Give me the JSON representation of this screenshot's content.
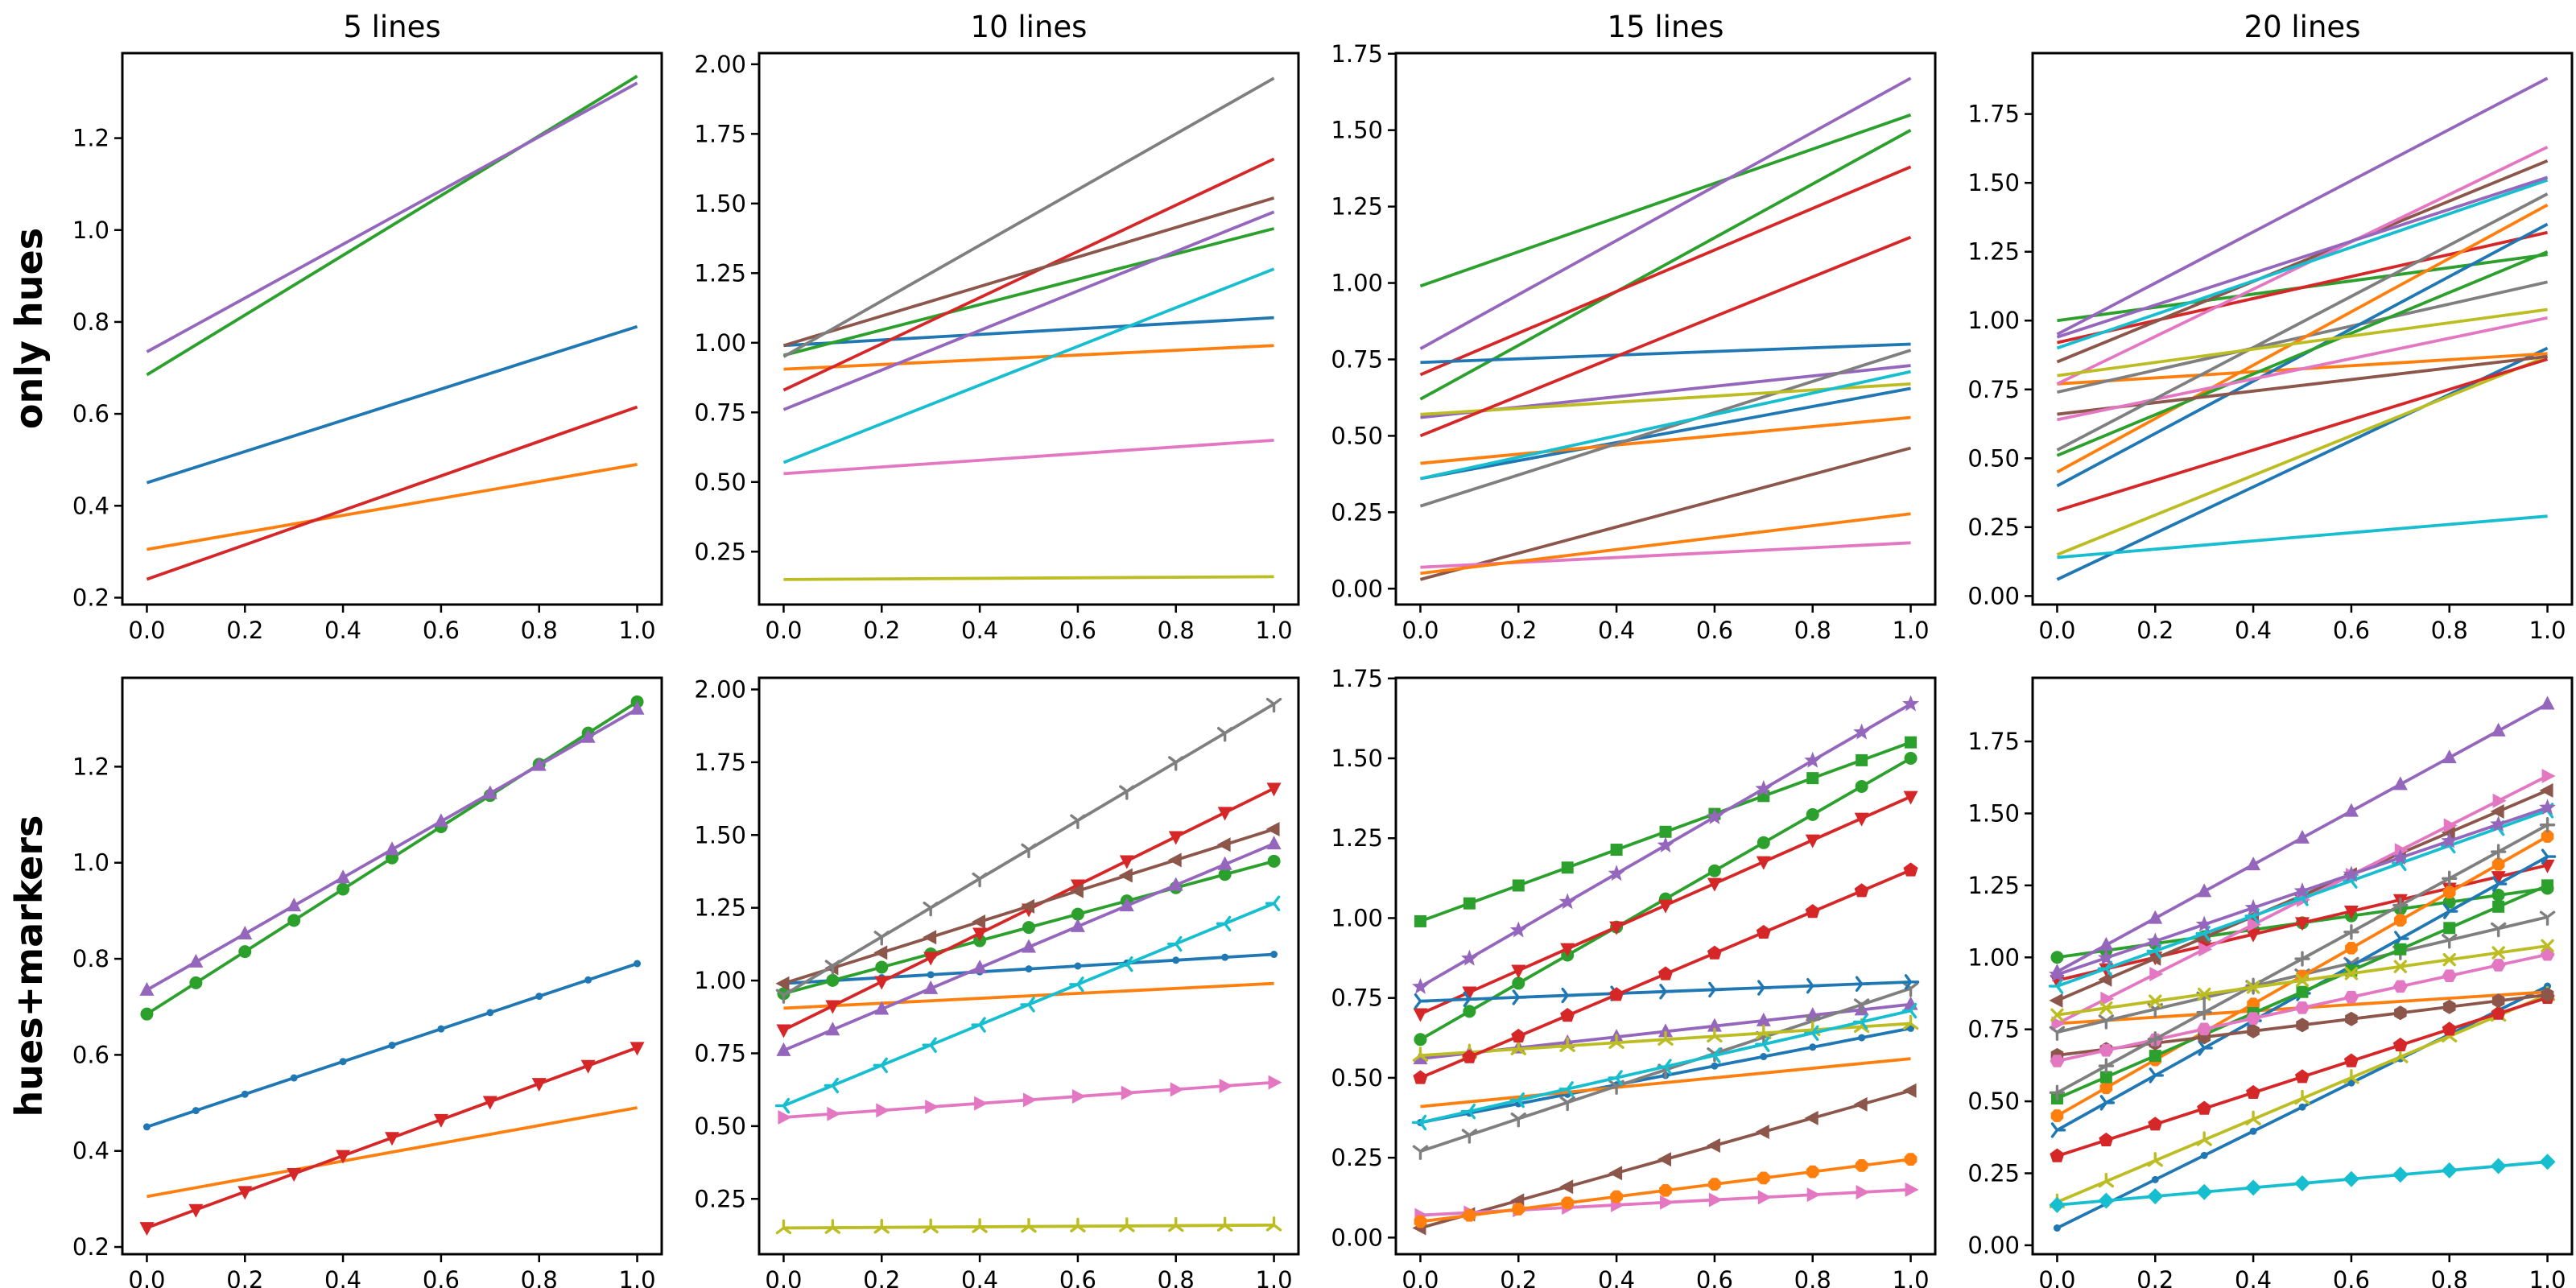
{
  "figure": {
    "background": "#ffffff",
    "text_color": "#000000",
    "row_labels": [
      "only hues",
      "hues+markers"
    ],
    "col_titles": [
      "5 lines",
      "10 lines",
      "15 lines",
      "20 lines"
    ]
  },
  "palette": {
    "blue": "#1f77b4",
    "orange": "#ff7f0e",
    "green": "#2ca02c",
    "red": "#d62728",
    "purple": "#9467bd",
    "brown": "#8c564b",
    "pink": "#e377c2",
    "gray": "#7f7f7f",
    "olive": "#bcbd22",
    "cyan": "#17becf"
  },
  "chart_data": {
    "type": "line",
    "x_range": [
      0.0,
      1.0
    ],
    "marker_x_step": 0.1,
    "xlim": [
      -0.05,
      1.05
    ],
    "xticks": [
      0.0,
      0.2,
      0.4,
      0.6,
      0.8,
      1.0
    ],
    "xticklabels": [
      "0.0",
      "0.2",
      "0.4",
      "0.6",
      "0.8",
      "1.0"
    ],
    "grid": false,
    "legend": "none",
    "rows": [
      {
        "label": "only hues",
        "show_markers": false
      },
      {
        "label": "hues+markers",
        "show_markers": true
      }
    ],
    "columns": [
      {
        "title": "5 lines",
        "ylim": [
          0.185,
          1.385
        ],
        "yticks": [
          0.2,
          0.4,
          0.6,
          0.8,
          1.0,
          1.2
        ],
        "yticklabels": [
          "0.2",
          "0.4",
          "0.6",
          "0.8",
          "1.0",
          "1.2"
        ],
        "series": [
          {
            "hue": "blue",
            "marker": "point",
            "y_start": 0.45,
            "y_end": 0.79
          },
          {
            "hue": "orange",
            "marker": "pixel",
            "y_start": 0.305,
            "y_end": 0.49
          },
          {
            "hue": "green",
            "marker": "circle",
            "y_start": 0.685,
            "y_end": 1.335
          },
          {
            "hue": "red",
            "marker": "triangle_down",
            "y_start": 0.24,
            "y_end": 0.615
          },
          {
            "hue": "purple",
            "marker": "triangle_up",
            "y_start": 0.735,
            "y_end": 1.32
          }
        ]
      },
      {
        "title": "10 lines",
        "ylim": [
          0.06,
          2.04
        ],
        "yticks": [
          0.25,
          0.5,
          0.75,
          1.0,
          1.25,
          1.5,
          1.75,
          2.0
        ],
        "yticklabels": [
          "0.25",
          "0.50",
          "0.75",
          "1.00",
          "1.25",
          "1.50",
          "1.75",
          "2.00"
        ],
        "series": [
          {
            "hue": "blue",
            "marker": "point",
            "y_start": 0.99,
            "y_end": 1.09
          },
          {
            "hue": "orange",
            "marker": "pixel",
            "y_start": 0.905,
            "y_end": 0.99
          },
          {
            "hue": "green",
            "marker": "circle",
            "y_start": 0.955,
            "y_end": 1.41
          },
          {
            "hue": "red",
            "marker": "triangle_down",
            "y_start": 0.83,
            "y_end": 1.66
          },
          {
            "hue": "purple",
            "marker": "triangle_up",
            "y_start": 0.76,
            "y_end": 1.47
          },
          {
            "hue": "brown",
            "marker": "triangle_left",
            "y_start": 0.99,
            "y_end": 1.52
          },
          {
            "hue": "pink",
            "marker": "triangle_right",
            "y_start": 0.53,
            "y_end": 0.65
          },
          {
            "hue": "gray",
            "marker": "tri_down",
            "y_start": 0.95,
            "y_end": 1.95
          },
          {
            "hue": "olive",
            "marker": "tri_up",
            "y_start": 0.15,
            "y_end": 0.16
          },
          {
            "hue": "cyan",
            "marker": "tri_left",
            "y_start": 0.57,
            "y_end": 1.265
          }
        ]
      },
      {
        "title": "15 lines",
        "ylim": [
          -0.052,
          1.752
        ],
        "yticks": [
          0.0,
          0.25,
          0.5,
          0.75,
          1.0,
          1.25,
          1.5,
          1.75
        ],
        "yticklabels": [
          "0.00",
          "0.25",
          "0.50",
          "0.75",
          "1.00",
          "1.25",
          "1.50",
          "1.75"
        ],
        "series": [
          {
            "hue": "blue",
            "marker": "point",
            "y_start": 0.36,
            "y_end": 0.655
          },
          {
            "hue": "orange",
            "marker": "pixel",
            "y_start": 0.41,
            "y_end": 0.56
          },
          {
            "hue": "green",
            "marker": "circle",
            "y_start": 0.62,
            "y_end": 1.5
          },
          {
            "hue": "red",
            "marker": "triangle_down",
            "y_start": 0.7,
            "y_end": 1.38
          },
          {
            "hue": "purple",
            "marker": "triangle_up",
            "y_start": 0.56,
            "y_end": 0.73
          },
          {
            "hue": "brown",
            "marker": "triangle_left",
            "y_start": 0.03,
            "y_end": 0.46
          },
          {
            "hue": "pink",
            "marker": "triangle_right",
            "y_start": 0.07,
            "y_end": 0.15
          },
          {
            "hue": "gray",
            "marker": "tri_down",
            "y_start": 0.27,
            "y_end": 0.78
          },
          {
            "hue": "olive",
            "marker": "tri_up",
            "y_start": 0.57,
            "y_end": 0.67
          },
          {
            "hue": "cyan",
            "marker": "tri_left",
            "y_start": 0.36,
            "y_end": 0.71
          },
          {
            "hue": "blue",
            "marker": "tri_right",
            "y_start": 0.74,
            "y_end": 0.8
          },
          {
            "hue": "orange",
            "marker": "octagon",
            "y_start": 0.05,
            "y_end": 0.245
          },
          {
            "hue": "green",
            "marker": "square",
            "y_start": 0.99,
            "y_end": 1.55
          },
          {
            "hue": "red",
            "marker": "pentagon",
            "y_start": 0.5,
            "y_end": 1.15
          },
          {
            "hue": "purple",
            "marker": "star",
            "y_start": 0.785,
            "y_end": 1.67
          }
        ]
      },
      {
        "title": "20 lines",
        "ylim": [
          -0.031,
          1.971
        ],
        "yticks": [
          0.0,
          0.25,
          0.5,
          0.75,
          1.0,
          1.25,
          1.5,
          1.75
        ],
        "yticklabels": [
          "0.00",
          "0.25",
          "0.50",
          "0.75",
          "1.00",
          "1.25",
          "1.50",
          "1.75"
        ],
        "series": [
          {
            "hue": "blue",
            "marker": "point",
            "y_start": 0.06,
            "y_end": 0.9
          },
          {
            "hue": "orange",
            "marker": "pixel",
            "y_start": 0.77,
            "y_end": 0.88
          },
          {
            "hue": "green",
            "marker": "circle",
            "y_start": 1.0,
            "y_end": 1.24
          },
          {
            "hue": "red",
            "marker": "triangle_down",
            "y_start": 0.92,
            "y_end": 1.32
          },
          {
            "hue": "purple",
            "marker": "triangle_up",
            "y_start": 0.95,
            "y_end": 1.88
          },
          {
            "hue": "brown",
            "marker": "triangle_left",
            "y_start": 0.85,
            "y_end": 1.58
          },
          {
            "hue": "pink",
            "marker": "triangle_right",
            "y_start": 0.77,
            "y_end": 1.63
          },
          {
            "hue": "gray",
            "marker": "tri_down",
            "y_start": 0.74,
            "y_end": 1.14
          },
          {
            "hue": "olive",
            "marker": "tri_up",
            "y_start": 0.15,
            "y_end": 0.87
          },
          {
            "hue": "cyan",
            "marker": "tri_left",
            "y_start": 0.9,
            "y_end": 1.51
          },
          {
            "hue": "blue",
            "marker": "tri_right",
            "y_start": 0.4,
            "y_end": 1.35
          },
          {
            "hue": "orange",
            "marker": "octagon",
            "y_start": 0.45,
            "y_end": 1.42
          },
          {
            "hue": "green",
            "marker": "square",
            "y_start": 0.51,
            "y_end": 1.25
          },
          {
            "hue": "red",
            "marker": "pentagon",
            "y_start": 0.31,
            "y_end": 0.86
          },
          {
            "hue": "purple",
            "marker": "star",
            "y_start": 0.94,
            "y_end": 1.52
          },
          {
            "hue": "brown",
            "marker": "hexagon1",
            "y_start": 0.66,
            "y_end": 0.87
          },
          {
            "hue": "pink",
            "marker": "hexagon2",
            "y_start": 0.64,
            "y_end": 1.01
          },
          {
            "hue": "gray",
            "marker": "plus",
            "y_start": 0.53,
            "y_end": 1.46
          },
          {
            "hue": "olive",
            "marker": "x",
            "y_start": 0.8,
            "y_end": 1.04
          },
          {
            "hue": "cyan",
            "marker": "diamond",
            "y_start": 0.14,
            "y_end": 0.29
          }
        ]
      }
    ]
  }
}
